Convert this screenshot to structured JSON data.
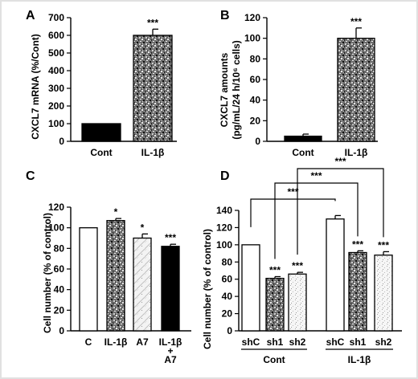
{
  "chart_data": [
    {
      "type": "bar",
      "panel_label": "A",
      "ylabel": "CXCL7 mRNA (%/Cont)",
      "ylim": [
        0,
        700
      ],
      "yticks": [
        0,
        100,
        200,
        300,
        400,
        500,
        600,
        700
      ],
      "categories": [
        "Cont",
        "IL-1β"
      ],
      "values": [
        100,
        600
      ],
      "errors": [
        0,
        35
      ],
      "fills": [
        "black",
        "speckle"
      ],
      "significance": [
        "",
        "***"
      ]
    },
    {
      "type": "bar",
      "panel_label": "B",
      "ylabel_lines": [
        "CXCL7 amounts",
        "(pg/mL/24 h/10⁶ cells)"
      ],
      "ylim": [
        0,
        120
      ],
      "yticks": [
        0,
        20,
        40,
        60,
        80,
        100,
        120
      ],
      "categories": [
        "Cont",
        "IL-1β"
      ],
      "values": [
        5,
        100
      ],
      "errors": [
        2,
        10
      ],
      "fills": [
        "black",
        "speckle"
      ],
      "significance": [
        "",
        "***"
      ]
    },
    {
      "type": "bar",
      "panel_label": "C",
      "ylabel": "Cell number (% of control)",
      "ylim": [
        0,
        120
      ],
      "yticks": [
        0,
        20,
        40,
        60,
        80,
        100,
        120
      ],
      "categories": [
        [
          "C"
        ],
        [
          "IL-1β"
        ],
        [
          "A7"
        ],
        [
          "IL-1β",
          "+",
          "A7"
        ]
      ],
      "values": [
        100,
        107,
        90,
        82
      ],
      "errors": [
        0,
        2,
        4,
        2
      ],
      "fills": [
        "white",
        "speckle",
        "sketch",
        "black"
      ],
      "significance": [
        "",
        "*",
        "*",
        "***"
      ]
    },
    {
      "type": "bar",
      "panel_label": "D",
      "ylabel": "Cell number (% of control)",
      "ylim": [
        0,
        140
      ],
      "yticks": [
        0,
        20,
        40,
        60,
        80,
        100,
        120,
        140
      ],
      "categories": [
        "shC",
        "sh1",
        "sh2",
        "shC",
        "sh1",
        "sh2"
      ],
      "groups": [
        "Cont",
        "IL-1β"
      ],
      "values": [
        100,
        61,
        66,
        130,
        91,
        88
      ],
      "errors": [
        0,
        2,
        2,
        4,
        2,
        4
      ],
      "fills": [
        "white",
        "speckle",
        "lightdots",
        "white",
        "speckle",
        "lightdots"
      ],
      "significance": [
        "",
        "***",
        "***",
        "",
        "***",
        "***"
      ],
      "brackets": [
        {
          "from": 0,
          "to": 3,
          "label": "***"
        },
        {
          "from": 1,
          "to": 4,
          "label": "***"
        },
        {
          "from": 2,
          "to": 5,
          "label": "***"
        }
      ]
    }
  ]
}
